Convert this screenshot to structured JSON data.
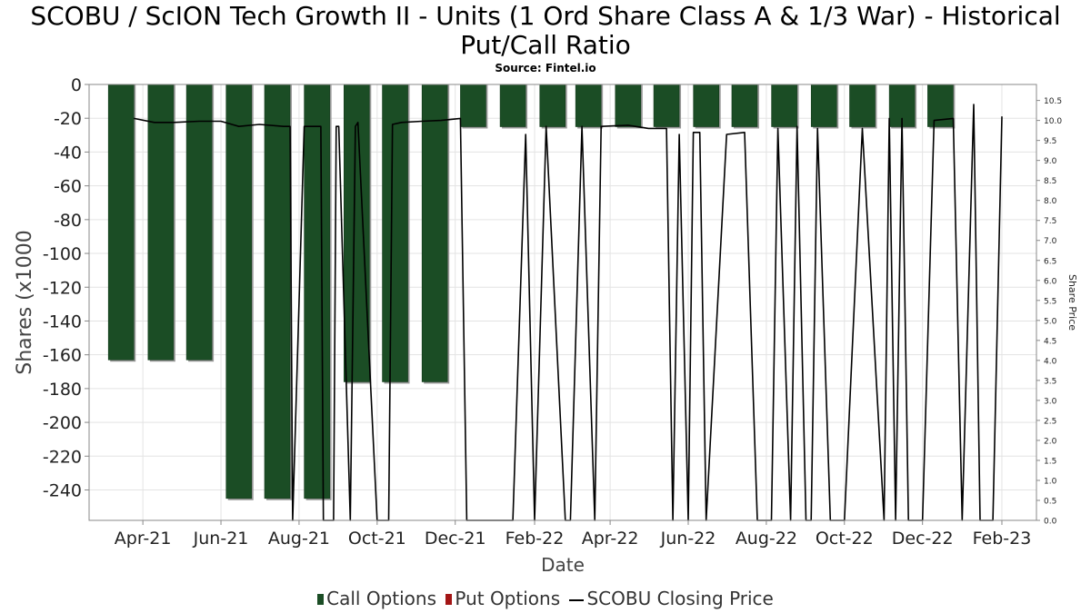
{
  "chart_data": {
    "type": "bar",
    "title": "SCOBU / ScION Tech Growth II - Units (1 Ord Share Class A & 1/3 War) - Historical Put/Call Ratio",
    "subtitle": "Source: Fintel.io",
    "xlabel": "Date",
    "ylabel": "Shares (x1000",
    "y2label": "Share Price",
    "ylim": [
      -258,
      0
    ],
    "y2lim": [
      0,
      10.9
    ],
    "yticks": [
      "0",
      "-20",
      "-40",
      "-60",
      "-80",
      "-100",
      "-120",
      "-140",
      "-160",
      "-180",
      "-200",
      "-220",
      "-240"
    ],
    "y2ticks": [
      "0.0",
      "0.5",
      "1.0",
      "1.5",
      "2.0",
      "2.5",
      "3.0",
      "3.5",
      "4.0",
      "4.5",
      "5.0",
      "5.5",
      "6.0",
      "6.5",
      "7.0",
      "7.5",
      "8.0",
      "8.5",
      "9.0",
      "9.5",
      "10.0",
      "10.5"
    ],
    "xticks": [
      "Apr-21",
      "Jun-21",
      "Aug-21",
      "Oct-21",
      "Dec-21",
      "Feb-22",
      "Apr-22",
      "Jun-22",
      "Aug-22",
      "Oct-22",
      "Dec-22",
      "Feb-23"
    ],
    "grid": true,
    "legend_position": "bottom",
    "legend": [
      {
        "label": "Call Options",
        "color": "#1b4d25",
        "kind": "bar"
      },
      {
        "label": "Put Options",
        "color": "#a31515",
        "kind": "bar"
      },
      {
        "label": "SCOBU Closing Price",
        "color": "#000000",
        "kind": "line"
      }
    ],
    "series": [
      {
        "name": "Call Options",
        "color": "#1b4d25",
        "dates": [
          "2021-03-15",
          "2021-04-15",
          "2021-05-15",
          "2021-06-15",
          "2021-07-15",
          "2021-08-15",
          "2021-09-15",
          "2021-10-15",
          "2021-11-15",
          "2021-12-15",
          "2022-01-15",
          "2022-02-15",
          "2022-03-15",
          "2022-04-15",
          "2022-05-15",
          "2022-06-15",
          "2022-07-15",
          "2022-08-15",
          "2022-09-15",
          "2022-10-15",
          "2022-11-15",
          "2022-12-15"
        ],
        "values": [
          -163,
          -163,
          -163,
          -245,
          -245,
          -245,
          -176,
          -176,
          -176,
          -25,
          -25,
          -25,
          -25,
          -25,
          -25,
          -25,
          -25,
          -25,
          -25,
          -25,
          -25,
          -25
        ]
      },
      {
        "name": "Put Options",
        "color": "#a31515",
        "dates": [],
        "values": []
      },
      {
        "name": "SCOBU Closing Price",
        "color": "#000000",
        "axis": "right",
        "dates": [
          "2021-03-25",
          "2021-04-10",
          "2021-04-25",
          "2021-05-15",
          "2021-06-01",
          "2021-06-15",
          "2021-07-01",
          "2021-07-20",
          "2021-07-25",
          "2021-07-27",
          "2021-08-05",
          "2021-08-18",
          "2021-08-20",
          "2021-08-28",
          "2021-08-30",
          "2021-09-01",
          "2021-09-10",
          "2021-09-14",
          "2021-09-16",
          "2021-10-01",
          "2021-10-10",
          "2021-10-13",
          "2021-10-20",
          "2021-11-05",
          "2021-11-20",
          "2021-12-05",
          "2021-12-10",
          "2021-12-15",
          "2022-01-15",
          "2022-01-25",
          "2022-02-01",
          "2022-02-10",
          "2022-02-25",
          "2022-03-01",
          "2022-03-10",
          "2022-03-20",
          "2022-03-25",
          "2022-04-15",
          "2022-05-01",
          "2022-05-15",
          "2022-05-20",
          "2022-05-25",
          "2022-06-01",
          "2022-06-05",
          "2022-06-10",
          "2022-06-15",
          "2022-07-01",
          "2022-07-15",
          "2022-07-25",
          "2022-08-05",
          "2022-08-10",
          "2022-08-20",
          "2022-08-25",
          "2022-09-01",
          "2022-09-05",
          "2022-09-10",
          "2022-09-20",
          "2022-10-01",
          "2022-10-15",
          "2022-11-01",
          "2022-11-05",
          "2022-11-10",
          "2022-11-15",
          "2022-11-20",
          "2022-12-01",
          "2022-12-10",
          "2022-12-25",
          "2023-01-01",
          "2023-01-10",
          "2023-01-15",
          "2023-01-25",
          "2023-02-01"
        ],
        "values": [
          10.05,
          9.95,
          9.95,
          9.98,
          9.98,
          9.85,
          9.9,
          9.85,
          9.85,
          0.0,
          9.85,
          9.85,
          0.0,
          0.0,
          9.85,
          9.85,
          0.0,
          9.85,
          9.95,
          0.0,
          0.0,
          9.9,
          9.95,
          9.98,
          10.0,
          10.05,
          0.0,
          0.0,
          0.0,
          9.65,
          0.0,
          9.85,
          0.0,
          0.0,
          9.85,
          0.0,
          9.85,
          9.88,
          9.8,
          9.8,
          0.0,
          9.65,
          0.0,
          9.7,
          9.7,
          0.0,
          9.65,
          9.7,
          0.0,
          0.0,
          9.8,
          0.0,
          9.85,
          0.0,
          0.0,
          9.8,
          0.0,
          0.0,
          9.8,
          0.0,
          10.05,
          0.0,
          10.05,
          0.0,
          0.0,
          10.0,
          10.05,
          0.0,
          10.4,
          0.0,
          0.0,
          10.1
        ]
      }
    ]
  }
}
